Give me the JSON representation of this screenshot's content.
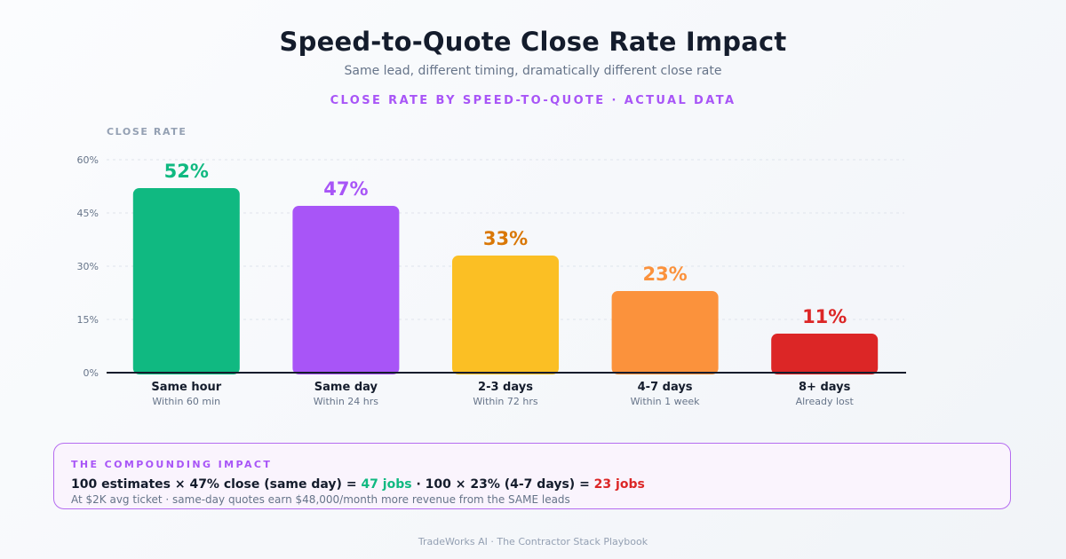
{
  "chart_data": {
    "type": "bar",
    "title": "Speed-to-Quote Close Rate Impact",
    "subtitle": "Same lead, different timing, dramatically different close rate",
    "kicker": "CLOSE RATE BY SPEED-TO-QUOTE · ACTUAL DATA",
    "ylabel": "CLOSE RATE",
    "xlabel": "",
    "ylim": [
      0,
      60
    ],
    "yticks": [
      0,
      15,
      30,
      45,
      60
    ],
    "ytick_labels": [
      "0%",
      "15%",
      "30%",
      "45%",
      "60%"
    ],
    "grid": true,
    "categories": [
      "Same hour",
      "Same day",
      "2-3 days",
      "4-7 days",
      "8+ days"
    ],
    "sublabels": [
      "Within 60 min",
      "Within 24 hrs",
      "Within 72 hrs",
      "Within 1 week",
      "Already lost"
    ],
    "values": [
      52,
      47,
      33,
      23,
      11
    ],
    "value_labels": [
      "52%",
      "47%",
      "33%",
      "23%",
      "11%"
    ],
    "colors": [
      "#10b981",
      "#a855f7",
      "#fbbf24",
      "#fb923c",
      "#dc2626"
    ],
    "label_colors": [
      "#10b981",
      "#a855f7",
      "#d97706",
      "#fb923c",
      "#dc2626"
    ]
  },
  "impact": {
    "heading": "THE COMPOUNDING IMPACT",
    "part1": "100 estimates × 47% close (same day) = ",
    "part2": "47 jobs",
    "part3": " · 100 × 23% (4-7 days) = ",
    "part4": "23 jobs",
    "note": "At $2K avg ticket · same-day quotes earn $48,000/month more revenue from the SAME leads"
  },
  "footer": "TradeWorks AI · The Contractor Stack Playbook"
}
